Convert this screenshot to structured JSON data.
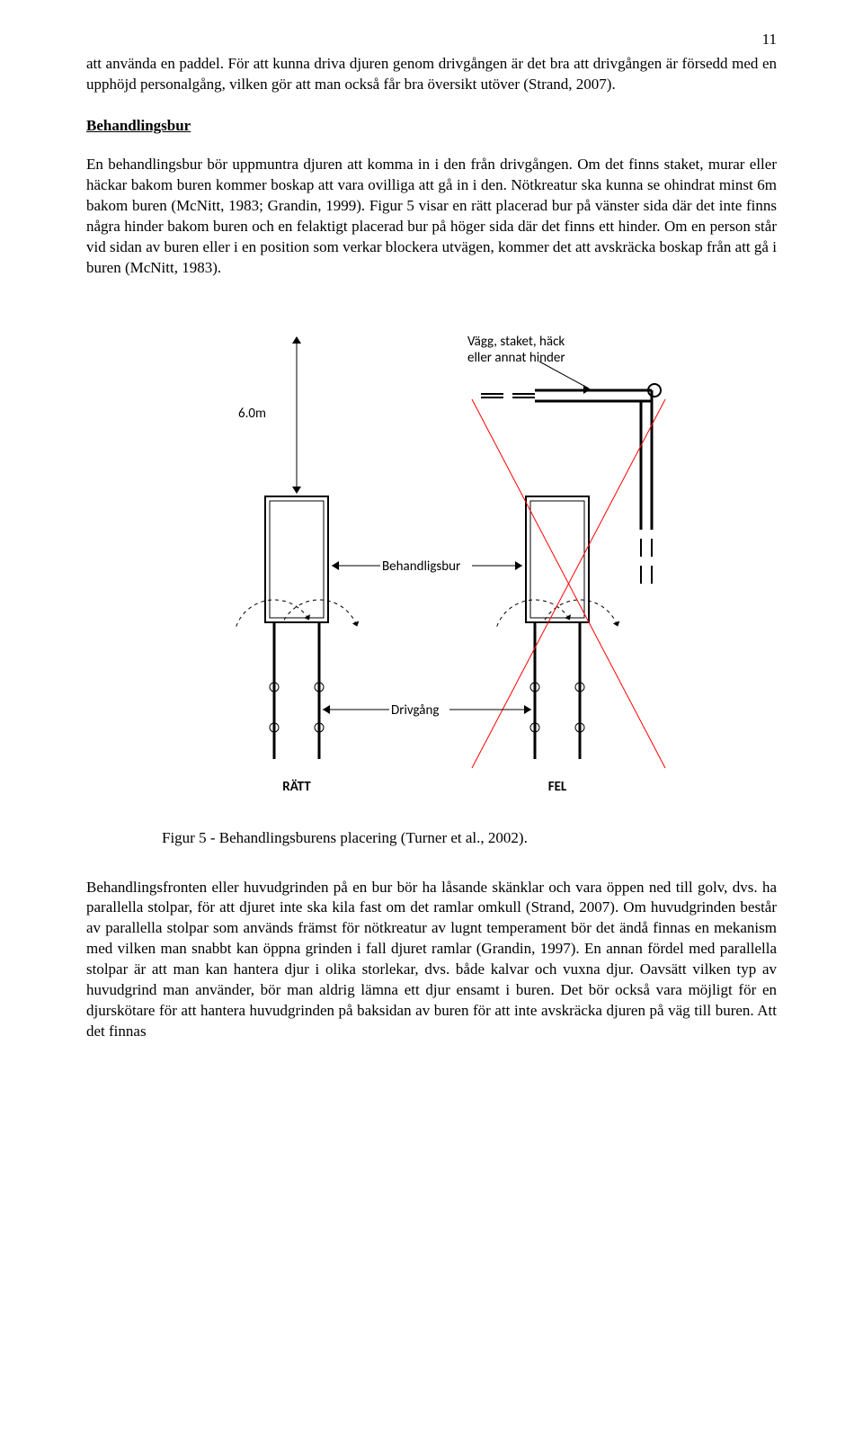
{
  "page_number": "11",
  "para_intro": "att använda en paddel. För att kunna driva djuren genom drivgången är det bra att drivgången är försedd med en upphöjd personalgång, vilken gör att man också får bra översikt utöver (Strand, 2007).",
  "section_title": "Behandlingsbur",
  "para_body": "En behandlingsbur bör uppmuntra djuren att komma in i den från drivgången. Om det finns staket, murar eller häckar bakom buren kommer boskap att vara ovilliga att gå in i den. Nötkreatur ska kunna se ohindrat minst 6m bakom buren (McNitt, 1983; Grandin, 1999). Figur 5 visar en rätt placerad bur på vänster sida där det inte finns några hinder bakom buren och en felaktigt placerad bur på höger sida där det finns ett hinder. Om en person står vid sidan av buren eller i en position som verkar blockera utvägen, kommer det att avskräcka boskap från att gå i buren (McNitt, 1983).",
  "figure_caption": "Figur 5 - Behandlingsburens placering (Turner et al., 2002).",
  "para_after": "Behandlingsfronten eller huvudgrinden på en bur bör ha låsande skänklar och vara öppen ned till golv, dvs. ha parallella stolpar, för att djuret inte ska kila fast om det ramlar omkull (Strand, 2007). Om huvudgrinden består av parallella stolpar som används främst för nötkreatur av lugnt temperament bör det ändå finnas en mekanism med vilken man snabbt kan öppna grinden i fall djuret ramlar (Grandin, 1997). En annan fördel med parallella stolpar är att man kan hantera djur i olika storlekar, dvs. både kalvar och vuxna djur. Oavsätt vilken typ av huvudgrind man använder, bör man aldrig lämna ett djur ensamt i buren. Det bör också vara möjligt för en djurskötare för att hantera huvudgrinden på baksidan av buren för att inte avskräcka djuren på väg till buren. Att det finnas",
  "diagram": {
    "labels": {
      "distance": "6.0m",
      "obstacle": "Vägg, staket, häck\neller annat hinder",
      "crush": "Behandligsbur",
      "race": "Drivgång",
      "correct": "RÄTT",
      "wrong": "FEL"
    },
    "colors": {
      "stroke": "#000000",
      "cross": "#ff0000",
      "text": "#000000",
      "bg": "#ffffff"
    },
    "line_widths": {
      "thin": 1,
      "med": 2,
      "thick": 3
    },
    "font_sizes": {
      "label": 15,
      "bold_label": 15
    }
  }
}
